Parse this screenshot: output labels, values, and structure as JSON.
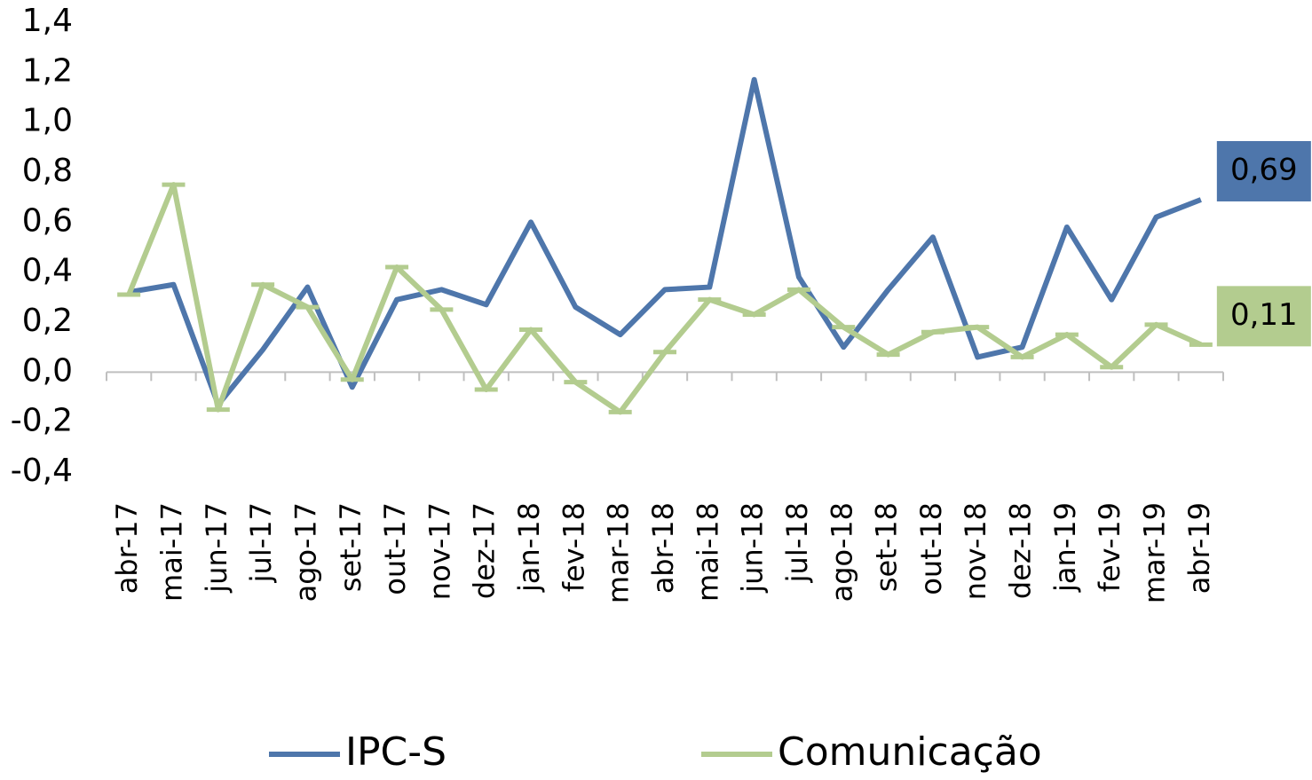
{
  "chart_data": {
    "type": "line",
    "categories": [
      "abr-17",
      "mai-17",
      "jun-17",
      "jul-17",
      "ago-17",
      "set-17",
      "out-17",
      "nov-17",
      "dez-17",
      "jan-18",
      "fev-18",
      "mar-18",
      "abr-18",
      "mai-18",
      "jun-18",
      "jul-18",
      "ago-18",
      "set-18",
      "out-18",
      "nov-18",
      "dez-18",
      "jan-19",
      "fev-19",
      "mar-19",
      "abr-19"
    ],
    "series": [
      {
        "name": "IPC-S",
        "color": "#4e76ab",
        "values": [
          0.32,
          0.35,
          -0.13,
          0.09,
          0.34,
          -0.06,
          0.29,
          0.33,
          0.27,
          0.6,
          0.26,
          0.15,
          0.33,
          0.34,
          1.17,
          0.38,
          0.1,
          0.33,
          0.54,
          0.06,
          0.1,
          0.58,
          0.29,
          0.62,
          0.69
        ],
        "value_labels": [
          null,
          null,
          null,
          null,
          null,
          null,
          null,
          null,
          null,
          null,
          null,
          null,
          null,
          null,
          null,
          null,
          null,
          null,
          null,
          null,
          null,
          null,
          null,
          null,
          "0,69"
        ]
      },
      {
        "name": "Comunicação",
        "color": "#b3cc8f",
        "values": [
          0.31,
          0.75,
          -0.15,
          0.35,
          0.26,
          -0.03,
          0.42,
          0.25,
          -0.07,
          0.17,
          -0.04,
          -0.16,
          0.08,
          0.29,
          0.23,
          0.33,
          0.18,
          0.07,
          0.16,
          0.18,
          0.06,
          0.15,
          0.02,
          0.19,
          0.11
        ],
        "value_labels": [
          null,
          null,
          null,
          null,
          null,
          null,
          null,
          null,
          null,
          null,
          null,
          null,
          null,
          null,
          null,
          null,
          null,
          null,
          null,
          null,
          null,
          null,
          null,
          null,
          "0,11"
        ]
      }
    ],
    "ylim": [
      -0.4,
      1.4
    ],
    "yticks": [
      {
        "value": -0.4,
        "label": "-0,4"
      },
      {
        "value": -0.2,
        "label": "-0,2"
      },
      {
        "value": 0,
        "label": "0,0"
      },
      {
        "value": 0.2,
        "label": "0,2"
      },
      {
        "value": 0.4,
        "label": "0,4"
      },
      {
        "value": 0.6,
        "label": "0,6"
      },
      {
        "value": 0.8,
        "label": "0,8"
      },
      {
        "value": 1.0,
        "label": "1,0"
      },
      {
        "value": 1.2,
        "label": "1,2"
      },
      {
        "value": 1.4,
        "label": "1,4"
      }
    ],
    "legend": "bottom"
  }
}
